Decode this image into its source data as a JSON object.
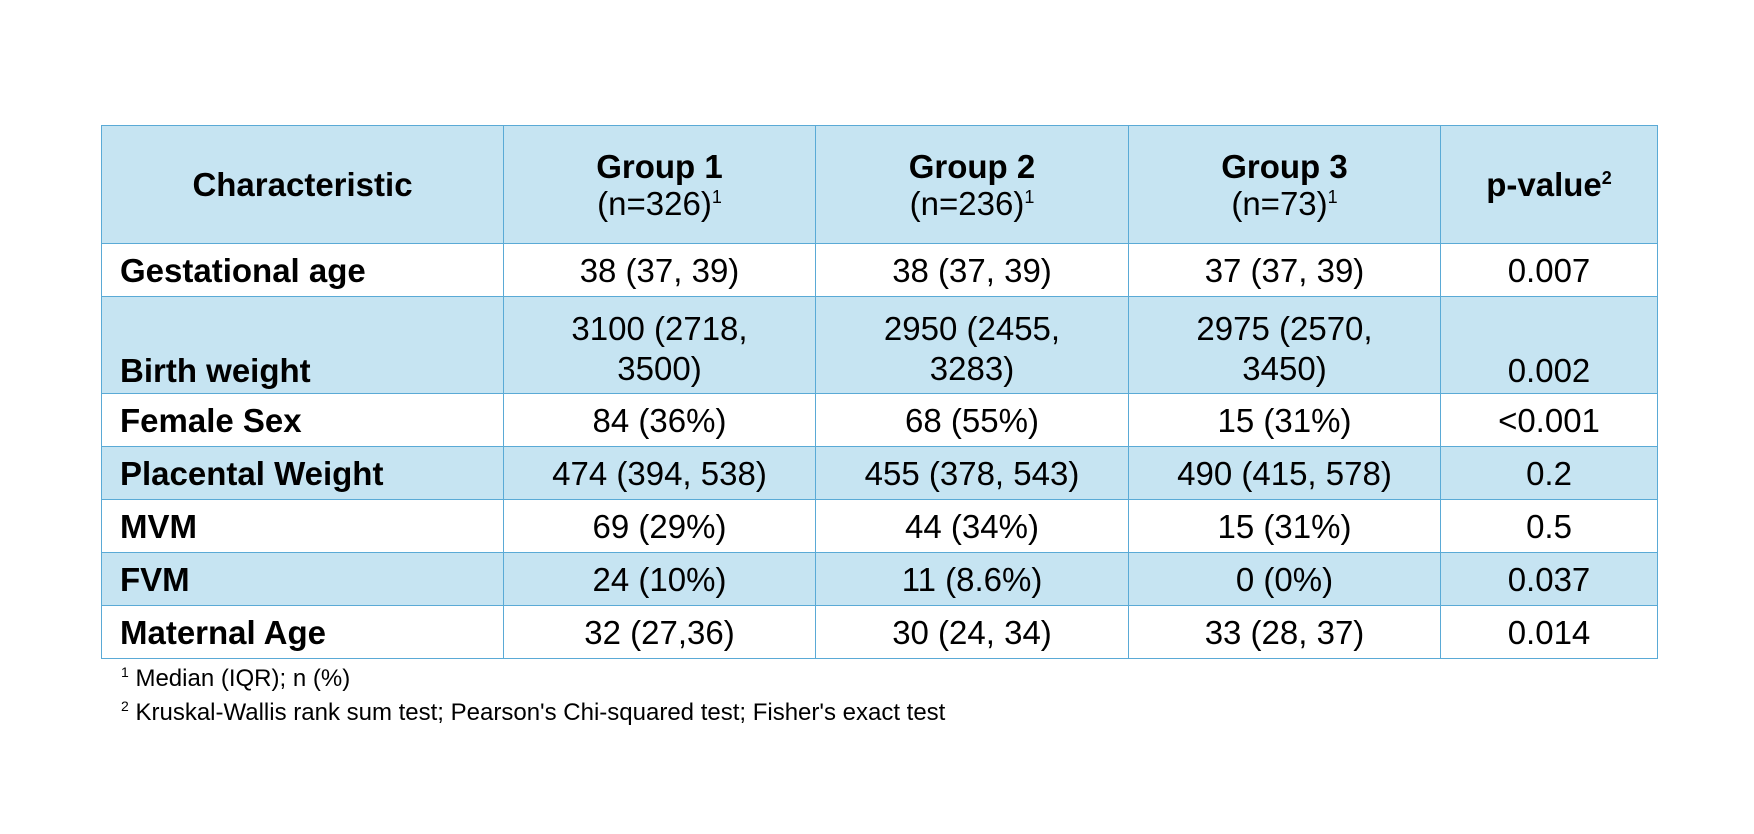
{
  "table": {
    "header": {
      "characteristic": "Characteristic",
      "groups": [
        {
          "name": "Group 1",
          "n": "(n=326)",
          "sup": "1"
        },
        {
          "name": "Group 2",
          "n": "(n=236)",
          "sup": "1"
        },
        {
          "name": "Group 3",
          "n": "(n=73)",
          "sup": "1"
        }
      ],
      "pvalue": "p-value",
      "pvalue_sup": "2"
    },
    "rows": [
      {
        "label": "Gestational age",
        "g1": "38 (37, 39)",
        "g2": "38 (37, 39)",
        "g3": "37 (37, 39)",
        "p": "0.007"
      },
      {
        "label": "Birth weight",
        "g1": "3100 (2718, 3500)",
        "g2": "2950 (2455, 3283)",
        "g3": "2975 (2570, 3450)",
        "p": "0.002"
      },
      {
        "label": "Female Sex",
        "g1": "84 (36%)",
        "g2": "68 (55%)",
        "g3": "15 (31%)",
        "p": "<0.001"
      },
      {
        "label": "Placental Weight",
        "g1": "474 (394, 538)",
        "g2": "455 (378, 543)",
        "g3": "490 (415, 578)",
        "p": "0.2"
      },
      {
        "label": "MVM",
        "g1": "69 (29%)",
        "g2": "44 (34%)",
        "g3": "15 (31%)",
        "p": "0.5"
      },
      {
        "label": "FVM",
        "g1": "24 (10%)",
        "g2": "11 (8.6%)",
        "g3": "0 (0%)",
        "p": "0.037"
      },
      {
        "label": "Maternal Age",
        "g1": "32 (27,36)",
        "g2": "30 (24, 34)",
        "g3": "33 (28, 37)",
        "p": "0.014"
      }
    ]
  },
  "footnotes": [
    {
      "sup": "1",
      "text": "Median (IQR); n (%)"
    },
    {
      "sup": "2",
      "text": "Kruskal-Wallis rank sum test; Pearson's Chi-squared test; Fisher's exact test"
    }
  ],
  "colors": {
    "header_fill": "#c6e4f2",
    "border": "#5aaad6"
  }
}
